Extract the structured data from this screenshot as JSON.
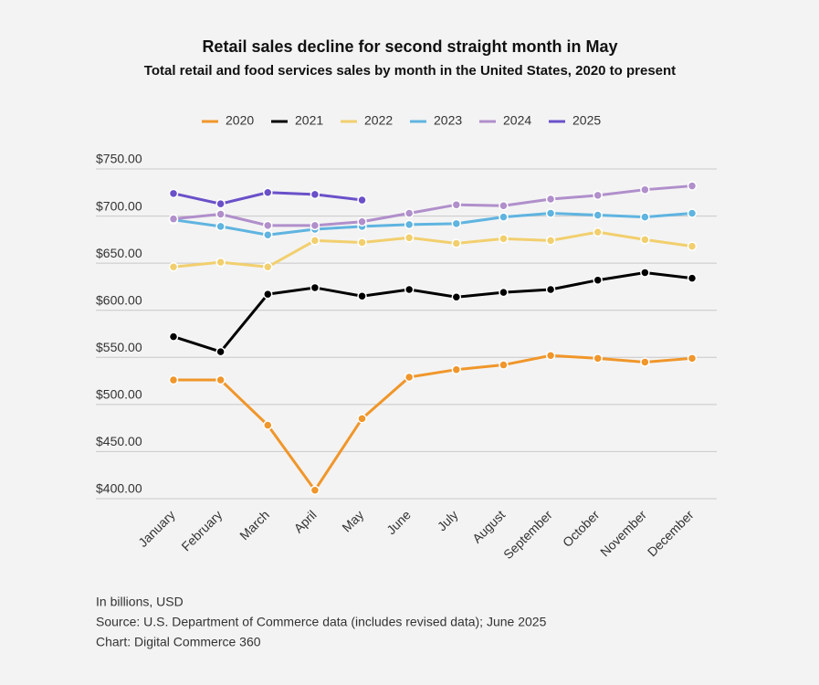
{
  "chart_data": {
    "type": "line",
    "title": "Retail sales decline for second straight month in May",
    "subtitle": "Total retail and food services sales by month in the United States, 2020 to present",
    "categories": [
      "January",
      "February",
      "March",
      "April",
      "May",
      "June",
      "July",
      "August",
      "September",
      "October",
      "November",
      "December"
    ],
    "series": [
      {
        "name": "2020",
        "color": "#f0962a",
        "values": [
          526,
          526,
          478,
          409,
          485,
          529,
          537,
          542,
          552,
          549,
          545,
          549
        ]
      },
      {
        "name": "2021",
        "color": "#000000",
        "values": [
          572,
          556,
          617,
          624,
          615,
          622,
          614,
          619,
          622,
          632,
          640,
          634
        ]
      },
      {
        "name": "2022",
        "color": "#f2cf6e",
        "values": [
          646,
          651,
          646,
          674,
          672,
          677,
          671,
          676,
          674,
          683,
          675,
          668
        ]
      },
      {
        "name": "2023",
        "color": "#5fb4e0",
        "values": [
          696,
          689,
          680,
          686,
          689,
          691,
          692,
          699,
          703,
          701,
          699,
          703
        ]
      },
      {
        "name": "2024",
        "color": "#b08fcb",
        "values": [
          697,
          702,
          690,
          690,
          694,
          703,
          712,
          711,
          718,
          722,
          728,
          732
        ]
      },
      {
        "name": "2025",
        "color": "#6a50c9",
        "values": [
          724,
          713,
          725,
          723,
          717,
          null,
          null,
          null,
          null,
          null,
          null,
          null
        ]
      }
    ],
    "ylim": [
      400,
      750
    ],
    "yticks": [
      {
        "value": 400,
        "label": "$400.00"
      },
      {
        "value": 450,
        "label": "$450.00"
      },
      {
        "value": 500,
        "label": "$500.00"
      },
      {
        "value": 550,
        "label": "$550.00"
      },
      {
        "value": 600,
        "label": "$600.00"
      },
      {
        "value": 650,
        "label": "$650.00"
      },
      {
        "value": 700,
        "label": "$700.00"
      },
      {
        "value": 750,
        "label": "$750.00"
      }
    ],
    "grid": true,
    "legend": "top",
    "notes": [
      "In billions, USD",
      "Source: U.S. Department of Commerce data (includes revised data); June 2025",
      "Chart: Digital Commerce 360"
    ]
  }
}
